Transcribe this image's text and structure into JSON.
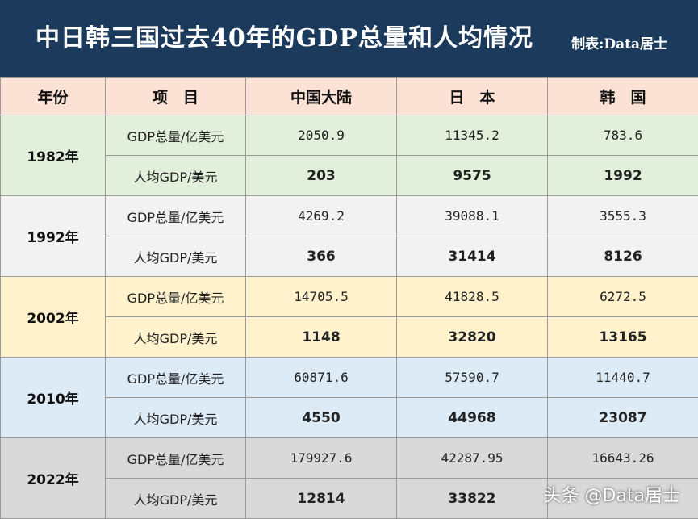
{
  "header": {
    "title": "中日韩三国过去40年的GDP总量和人均情况",
    "credit": "制表:Data居士"
  },
  "table": {
    "columns": [
      "年份",
      "项　目",
      "中国大陆",
      "日　本",
      "韩　国"
    ],
    "rows": [
      {
        "year": "1982年",
        "total": {
          "label": "GDP总量/亿美元",
          "china": "2050.9",
          "japan": "11345.2",
          "korea": "783.6"
        },
        "per_capita": {
          "label": "人均GDP/美元",
          "china": "203",
          "japan": "9575",
          "korea": "1992"
        }
      },
      {
        "year": "1992年",
        "total": {
          "label": "GDP总量/亿美元",
          "china": "4269.2",
          "japan": "39088.1",
          "korea": "3555.3"
        },
        "per_capita": {
          "label": "人均GDP/美元",
          "china": "366",
          "japan": "31414",
          "korea": "8126"
        }
      },
      {
        "year": "2002年",
        "total": {
          "label": "GDP总量/亿美元",
          "china": "14705.5",
          "japan": "41828.5",
          "korea": "6272.5"
        },
        "per_capita": {
          "label": "人均GDP/美元",
          "china": "1148",
          "japan": "32820",
          "korea": "13165"
        }
      },
      {
        "year": "2010年",
        "total": {
          "label": "GDP总量/亿美元",
          "china": "60871.6",
          "japan": "57590.7",
          "korea": "11440.7"
        },
        "per_capita": {
          "label": "人均GDP/美元",
          "china": "4550",
          "japan": "44968",
          "korea": "23087"
        }
      },
      {
        "year": "2022年",
        "total": {
          "label": "GDP总量/亿美元",
          "china": "179927.6",
          "japan": "42287.95",
          "korea": "16643.26"
        },
        "per_capita": {
          "label": "人均GDP/美元",
          "china": "12814",
          "japan": "33822",
          "korea": ""
        }
      }
    ]
  },
  "watermark": "头条 @Data居士"
}
